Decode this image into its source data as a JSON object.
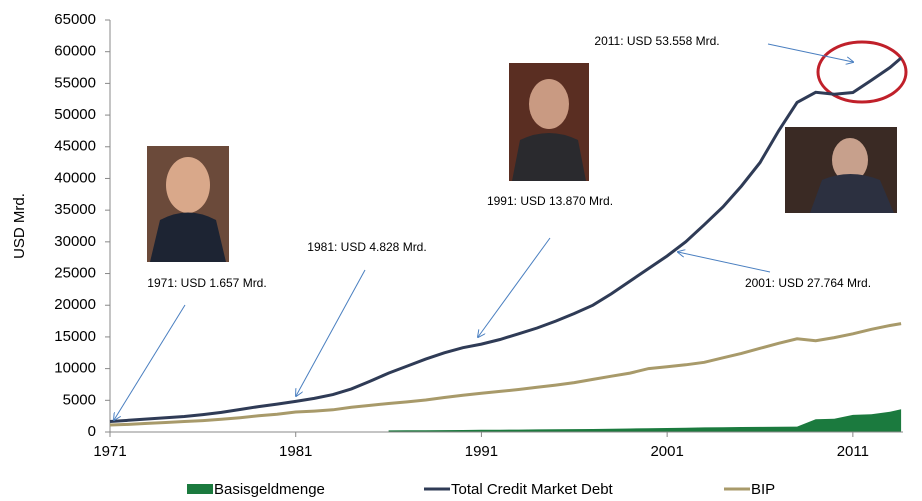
{
  "chart_data": {
    "type": "line",
    "y_label": "USD Mrd.",
    "x": [
      1971,
      1972,
      1973,
      1974,
      1975,
      1976,
      1977,
      1978,
      1979,
      1980,
      1981,
      1982,
      1983,
      1984,
      1985,
      1986,
      1987,
      1988,
      1989,
      1990,
      1991,
      1992,
      1993,
      1994,
      1995,
      1996,
      1997,
      1998,
      1999,
      2000,
      2001,
      2002,
      2003,
      2004,
      2005,
      2006,
      2007,
      2008,
      2009,
      2010,
      2011,
      2012,
      2013,
      2013.6
    ],
    "series": [
      {
        "name": "Basisgeldmenge",
        "color": "#1b7a3e",
        "fill": true,
        "values": [
          null,
          null,
          null,
          null,
          null,
          null,
          null,
          null,
          null,
          null,
          null,
          null,
          null,
          null,
          null,
          250,
          270,
          290,
          300,
          320,
          340,
          360,
          380,
          410,
          430,
          450,
          470,
          500,
          560,
          600,
          630,
          680,
          720,
          750,
          790,
          810,
          830,
          850,
          2000,
          2100,
          2700,
          2800,
          3200,
          3600
        ]
      },
      {
        "name": "Total Credit Market Debt",
        "color": "#2f3b56",
        "fill": false,
        "values": [
          1657,
          1850,
          2050,
          2250,
          2450,
          2750,
          3100,
          3550,
          4000,
          4400,
          4828,
          5300,
          5900,
          6800,
          8000,
          9300,
          10400,
          11500,
          12500,
          13300,
          13870,
          14600,
          15500,
          16400,
          17500,
          18700,
          20000,
          21800,
          23800,
          25800,
          27764,
          30000,
          32700,
          35500,
          38800,
          42500,
          47500,
          52000,
          53600,
          53300,
          53558,
          55500,
          57500,
          59000
        ]
      },
      {
        "name": "BIP",
        "color": "#a89a6a",
        "fill": false,
        "values": [
          1100,
          1200,
          1350,
          1500,
          1650,
          1800,
          2000,
          2250,
          2550,
          2800,
          3150,
          3300,
          3500,
          3900,
          4200,
          4500,
          4750,
          5050,
          5450,
          5800,
          6100,
          6400,
          6700,
          7050,
          7400,
          7800,
          8300,
          8800,
          9300,
          10000,
          10300,
          10600,
          11000,
          11700,
          12400,
          13200,
          14000,
          14700,
          14400,
          14900,
          15500,
          16200,
          16800,
          17100
        ]
      }
    ],
    "xlim": [
      1971,
      2013.7
    ],
    "xticks": [
      1971,
      1981,
      1991,
      2001,
      2011
    ],
    "ylim": [
      0,
      65000
    ],
    "yticks": [
      0,
      5000,
      10000,
      15000,
      20000,
      25000,
      30000,
      35000,
      40000,
      45000,
      50000,
      55000,
      60000,
      65000
    ],
    "annotations": [
      "1971: USD 1.657 Mrd.",
      "1981: USD 4.828 Mrd.",
      "1991: USD 13.870 Mrd.",
      "2001: USD 27.764 Mrd.",
      "2011: USD 53.558 Mrd."
    ]
  }
}
